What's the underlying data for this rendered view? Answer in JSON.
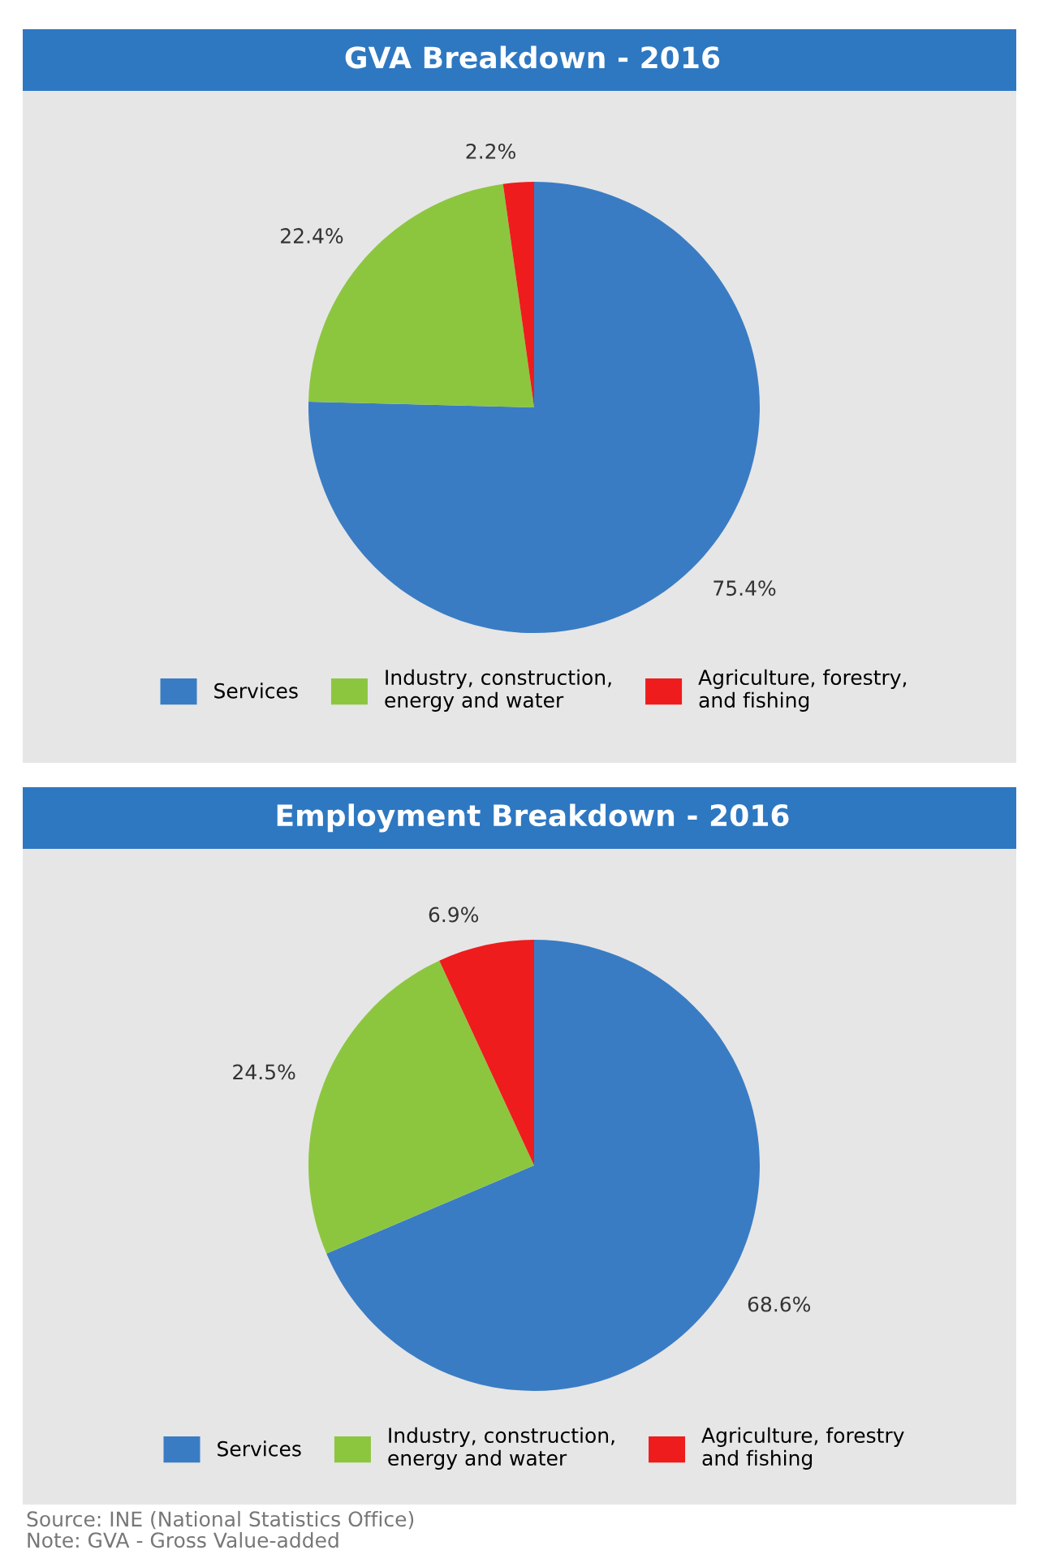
{
  "chart_data": [
    {
      "type": "pie",
      "title": "GVA Breakdown - 2016",
      "categories": [
        "Services",
        "Industry, construction, energy and water",
        "Agriculture, forestry, and fishing"
      ],
      "values": [
        75.4,
        22.4,
        2.2
      ],
      "value_labels": [
        "75.4%",
        "22.4%",
        "2.2%"
      ],
      "colors": [
        "#3a7cc4",
        "#8cc63f",
        "#ee1c1c"
      ],
      "legend": "bottom"
    },
    {
      "type": "pie",
      "title": "Employment Breakdown - 2016",
      "categories": [
        "Services",
        "Industry, construction, energy and water",
        "Agriculture, forestry and fishing"
      ],
      "values": [
        68.6,
        24.5,
        6.9
      ],
      "value_labels": [
        "68.6%",
        "24.5%",
        "6.9%"
      ],
      "colors": [
        "#3a7cc4",
        "#8cc63f",
        "#ee1c1c"
      ],
      "legend": "bottom",
      "annotations": [
        "Source: INE (National Statistics Office)",
        "Note: GVA - Gross Value-added"
      ]
    }
  ]
}
